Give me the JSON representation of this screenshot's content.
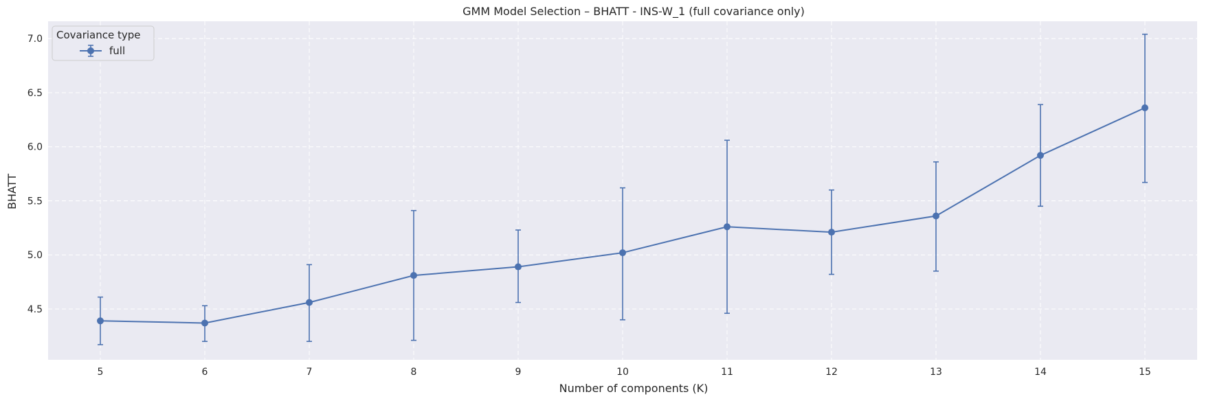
{
  "chart_data": {
    "type": "line",
    "title": "GMM Model Selection – BHATT - INS-W_1 (full covariance only)",
    "xlabel": "Number of components (K)",
    "ylabel": "BHATT",
    "x": [
      5,
      6,
      7,
      8,
      9,
      10,
      11,
      12,
      13,
      14,
      15
    ],
    "xlim": [
      4.5,
      15.5
    ],
    "ylim": [
      4.03,
      7.16
    ],
    "yticks": [
      4.5,
      5.0,
      5.5,
      6.0,
      6.5,
      7.0
    ],
    "ytick_labels": [
      "4.5",
      "5.0",
      "5.5",
      "6.0",
      "6.5",
      "7.0"
    ],
    "xtick_labels": [
      "5",
      "6",
      "7",
      "8",
      "9",
      "10",
      "11",
      "12",
      "13",
      "14",
      "15"
    ],
    "grid": true,
    "legend": {
      "title": "Covariance type",
      "placement": "top-left"
    },
    "series": [
      {
        "name": "full",
        "color": "#4c72b0",
        "values": [
          4.39,
          4.37,
          4.56,
          4.81,
          4.89,
          5.02,
          5.26,
          5.21,
          5.36,
          5.92,
          6.36
        ],
        "error_low": [
          4.17,
          4.2,
          4.2,
          4.21,
          4.56,
          4.4,
          4.46,
          4.82,
          4.85,
          5.45,
          5.67
        ],
        "error_high": [
          4.61,
          4.53,
          4.91,
          5.41,
          5.23,
          5.62,
          6.06,
          5.6,
          5.86,
          6.39,
          7.04
        ]
      }
    ],
    "background": "#eaeaf2"
  }
}
